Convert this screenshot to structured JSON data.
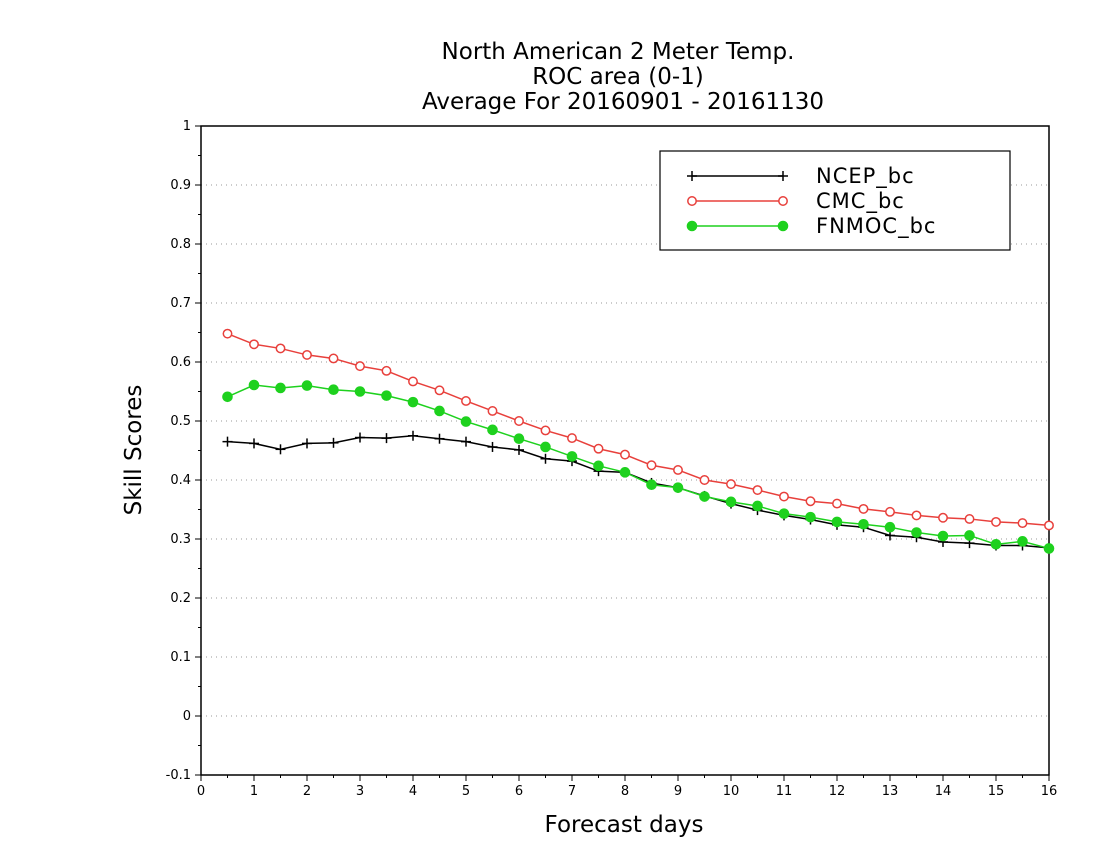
{
  "chart_data": {
    "type": "line",
    "title_lines": [
      "North American 2 Meter Temp.",
      "ROC area (0-1)",
      "Average For 20160901 - 20161130"
    ],
    "xlabel": "Forecast days",
    "ylabel": "Skill Scores",
    "xlim": [
      0,
      16
    ],
    "ylim": [
      -0.1,
      1
    ],
    "x_ticks": [
      0,
      1,
      2,
      3,
      4,
      5,
      6,
      7,
      8,
      9,
      10,
      11,
      12,
      13,
      14,
      15,
      16
    ],
    "x_tick_labels": [
      "0",
      "1",
      "2",
      "3",
      "4",
      "5",
      "6",
      "7",
      "8",
      "9",
      "10",
      "11",
      "12",
      "13",
      "14",
      "15",
      "16"
    ],
    "y_ticks": [
      -0.1,
      0,
      0.1,
      0.2,
      0.3,
      0.4,
      0.5,
      0.6,
      0.7,
      0.8,
      0.9,
      1
    ],
    "y_tick_labels": [
      "-0.1",
      "0",
      "0.1",
      "0.2",
      "0.3",
      "0.4",
      "0.5",
      "0.6",
      "0.7",
      "0.8",
      "0.9",
      "1"
    ],
    "grid": "horizontal-dotted",
    "legend_position": "top-right",
    "x": [
      0.5,
      1,
      1.5,
      2,
      2.5,
      3,
      3.5,
      4,
      4.5,
      5,
      5.5,
      6,
      6.5,
      7,
      7.5,
      8,
      8.5,
      9,
      9.5,
      10,
      10.5,
      11,
      11.5,
      12,
      12.5,
      13,
      13.5,
      14,
      14.5,
      15,
      15.5,
      16
    ],
    "series": [
      {
        "name": "NCEP_bc",
        "color": "#000000",
        "marker": "plus",
        "values": [
          0.465,
          0.462,
          0.452,
          0.462,
          0.463,
          0.472,
          0.471,
          0.475,
          0.47,
          0.465,
          0.456,
          0.451,
          0.436,
          0.432,
          0.415,
          0.413,
          0.395,
          0.387,
          0.373,
          0.36,
          0.349,
          0.34,
          0.333,
          0.324,
          0.32,
          0.306,
          0.303,
          0.295,
          0.293,
          0.289,
          0.289,
          0.285
        ]
      },
      {
        "name": "CMC_bc",
        "color": "#e8403c",
        "marker": "open-circle",
        "values": [
          0.648,
          0.63,
          0.623,
          0.612,
          0.606,
          0.593,
          0.585,
          0.567,
          0.552,
          0.534,
          0.517,
          0.5,
          0.484,
          0.471,
          0.453,
          0.443,
          0.425,
          0.417,
          0.4,
          0.393,
          0.383,
          0.372,
          0.364,
          0.36,
          0.351,
          0.346,
          0.34,
          0.336,
          0.334,
          0.329,
          0.327,
          0.323
        ]
      },
      {
        "name": "FNMOC_bc",
        "color": "#1ed11e",
        "marker": "filled-circle",
        "values": [
          0.541,
          0.561,
          0.556,
          0.56,
          0.553,
          0.55,
          0.543,
          0.532,
          0.517,
          0.499,
          0.485,
          0.47,
          0.456,
          0.44,
          0.424,
          0.413,
          0.392,
          0.387,
          0.372,
          0.363,
          0.356,
          0.343,
          0.337,
          0.329,
          0.325,
          0.32,
          0.311,
          0.305,
          0.306,
          0.291,
          0.296,
          0.284
        ]
      }
    ]
  }
}
